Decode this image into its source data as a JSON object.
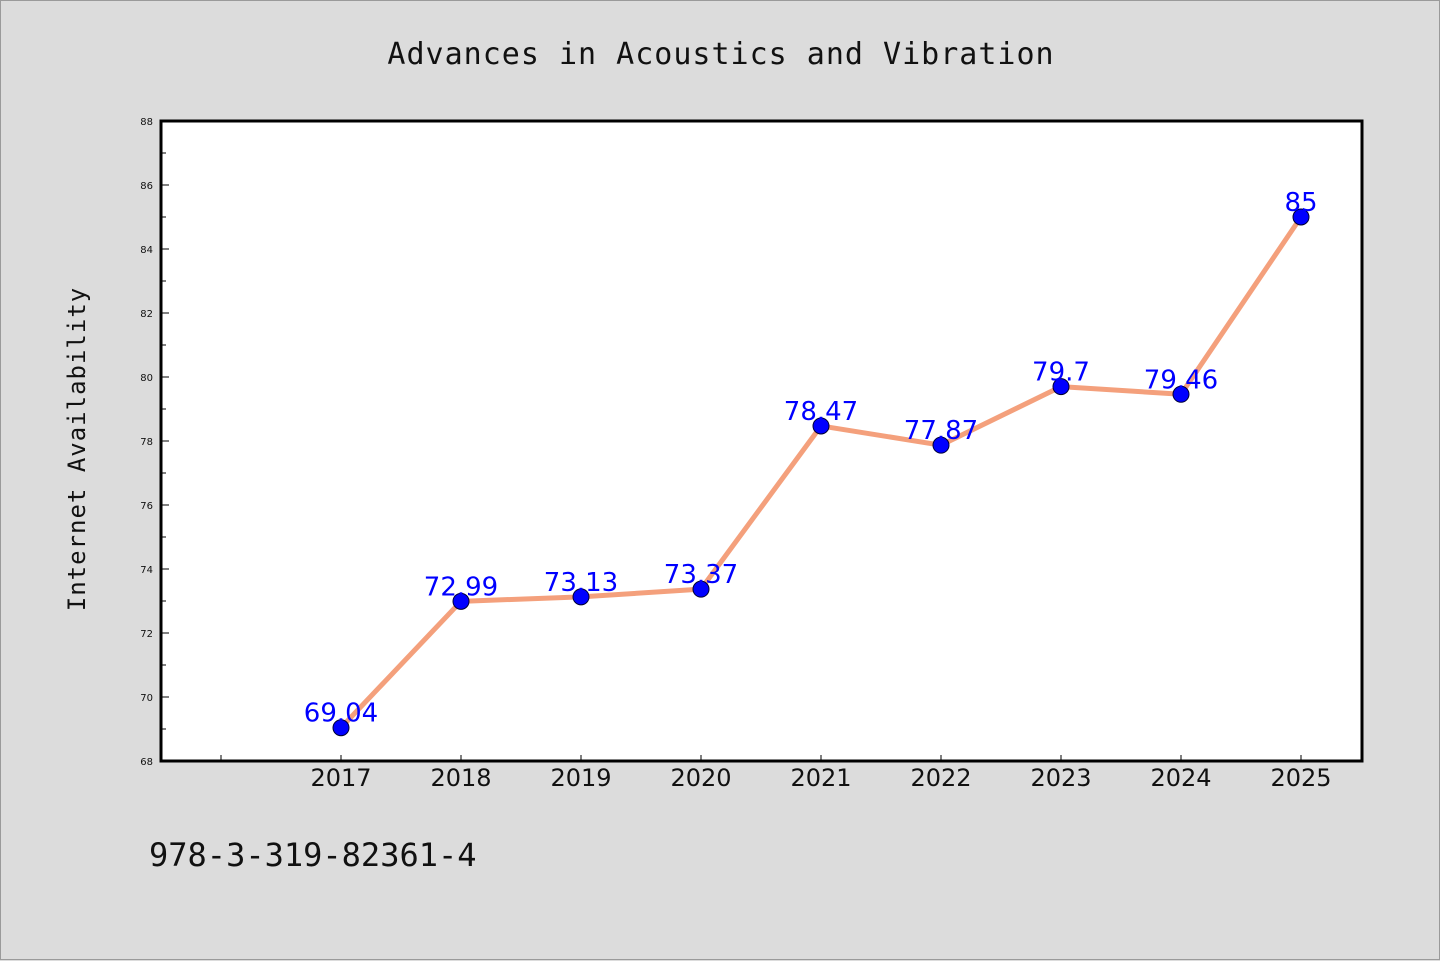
{
  "chart_data": {
    "type": "line",
    "title": "Advances in Acoustics and Vibration",
    "xlabel": "",
    "ylabel": "Internet Availability",
    "categories": [
      "2017",
      "2018",
      "2019",
      "2020",
      "2021",
      "2022",
      "2023",
      "2024",
      "2025"
    ],
    "series": [
      {
        "values": [
          69.04,
          72.99,
          73.13,
          73.37,
          78.47,
          77.87,
          79.7,
          79.46,
          85
        ],
        "labels": [
          "69.04",
          "72.99",
          "73.13",
          "73.37",
          "78.47",
          "77.87",
          "79.7",
          "79.46",
          "85"
        ]
      }
    ],
    "ylim": [
      68,
      88
    ],
    "yticks": [
      "68",
      "70",
      "72",
      "74",
      "76",
      "78",
      "80",
      "82",
      "84",
      "86",
      "88"
    ],
    "grid": false,
    "legend": "none",
    "colors": {
      "line": "#f4a07c",
      "marker": "#0000ff",
      "label": "#0000ff",
      "plot_background": "#ffffff",
      "figure_background": "#dcdcdc"
    }
  },
  "footer": {
    "isbn": "978-3-319-82361-4"
  }
}
